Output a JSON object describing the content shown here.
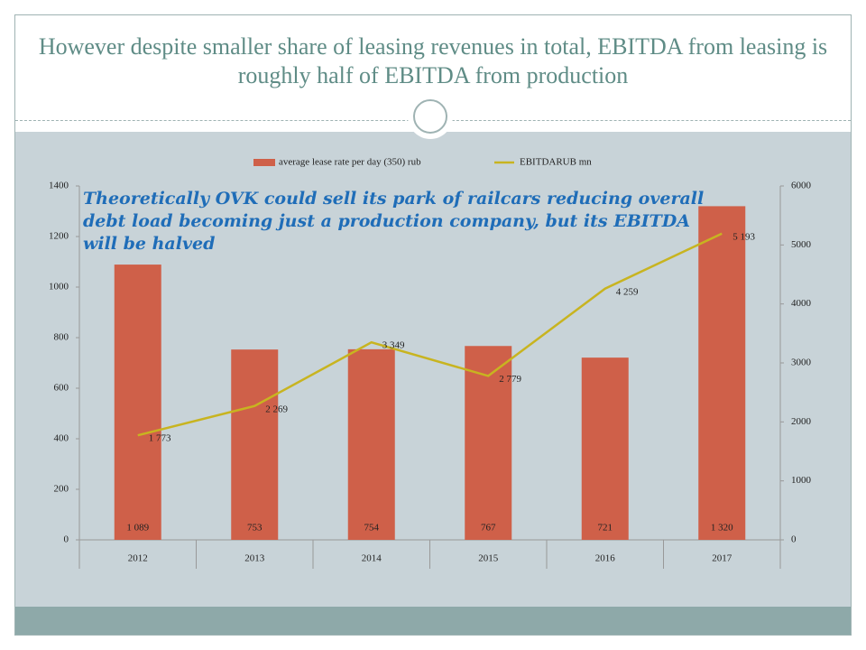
{
  "chart_data": {
    "type": "bar",
    "title": "However despite smaller share of leasing revenues in total, EBITDA from leasing is roughly half of EBITDA from production",
    "annotation": "Theoretically OVK could sell its park of railcars reducing overall debt load becoming just a production company, but its EBITDA will be halved",
    "categories": [
      "2012",
      "2013",
      "2014",
      "2015",
      "2016",
      "2017"
    ],
    "series": [
      {
        "name": "average lease rate per day (350) rub",
        "color": "#cf6049",
        "type": "bar",
        "values": [
          1089,
          753,
          754,
          767,
          721,
          1320
        ],
        "value_labels": [
          "1 089",
          "753",
          "754",
          "767",
          "721",
          "1 320"
        ]
      },
      {
        "name": "EBITDARUB mn",
        "color": "#c8b420",
        "type": "line",
        "axis": "y2",
        "values": [
          1773,
          2269,
          3349,
          2779,
          4259,
          5193
        ],
        "value_labels": [
          "1 773",
          "2 269",
          "3 349",
          "2 779",
          "4 259",
          "5 193"
        ]
      }
    ],
    "ylim": [
      0,
      1400
    ],
    "yticks": [
      0,
      200,
      400,
      600,
      800,
      1000,
      1200,
      1400
    ],
    "y2lim": [
      0,
      6000
    ],
    "y2ticks": [
      0,
      1000,
      2000,
      3000,
      4000,
      5000,
      6000
    ],
    "grid": false,
    "legend": "top"
  }
}
